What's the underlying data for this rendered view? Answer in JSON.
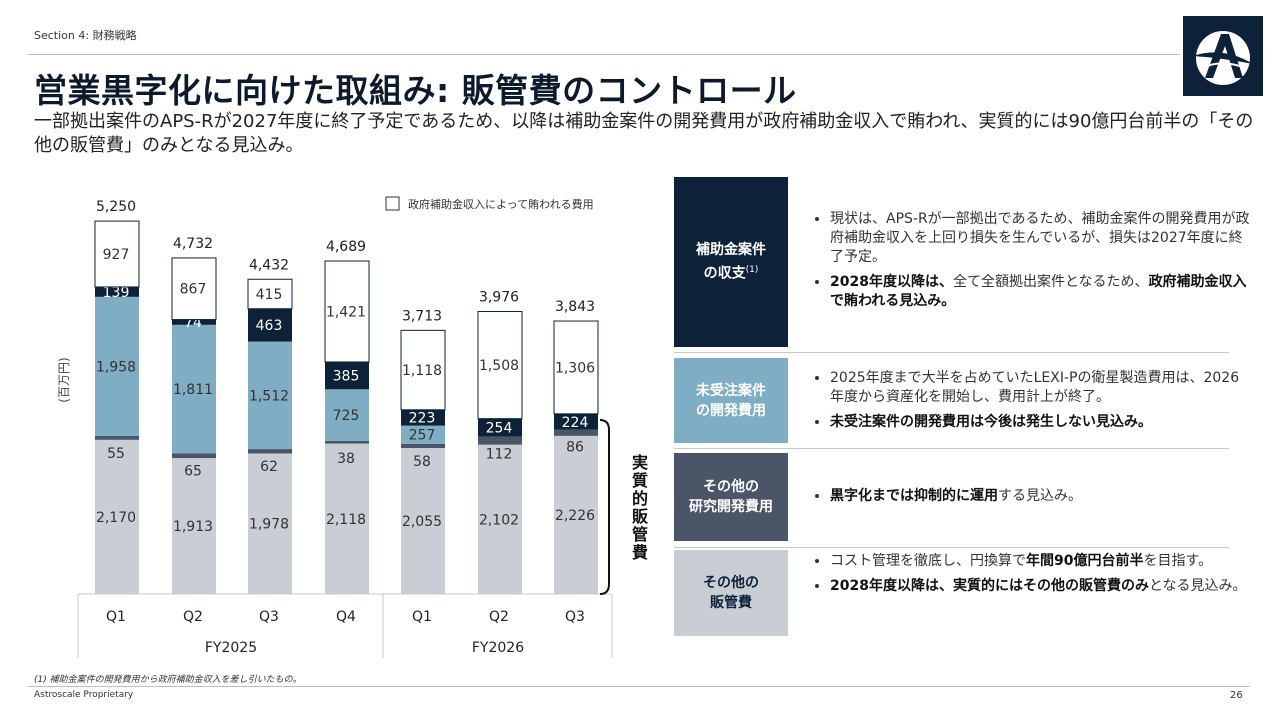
{
  "section_label": "Section 4: 財務戦略",
  "title": "営業黒字化に向けた取組み: 販管費のコントロール",
  "subtitle": "一部拠出案件のAPS-Rが2027年度に終了予定であるため、以降は補助金案件の開発費用が政府補助金収入で賄われ、実質的には90億円台前半の「その他の販管費」のみとなる見込み。",
  "colors": {
    "navy": "#0d2238",
    "steel_blue": "#7fadc4",
    "slate": "#4a5568",
    "light_gray": "#c9ced4",
    "white": "#ffffff"
  },
  "chart_data": {
    "type": "stacked-bar",
    "unit_label": "(百万円)",
    "legend": "政府補助金収入によって賄われる費用",
    "bracket_label": "実質的販管費",
    "groups": [
      {
        "label": "FY2025",
        "categories": [
          "Q1",
          "Q2",
          "Q3",
          "Q4"
        ]
      },
      {
        "label": "FY2026",
        "categories": [
          "Q1",
          "Q2",
          "Q3"
        ]
      }
    ],
    "categories": [
      "Q1",
      "Q2",
      "Q3",
      "Q4",
      "Q1",
      "Q2",
      "Q3"
    ],
    "totals": [
      5250,
      4732,
      4432,
      4689,
      3713,
      3976,
      3843
    ],
    "total_labels": [
      "5,250",
      "4,732",
      "4,432",
      "4,689",
      "3,713",
      "3,976",
      "3,843"
    ],
    "series": [
      {
        "name": "その他の販管費",
        "color": "light_gray",
        "values": [
          2170,
          1913,
          1978,
          2118,
          2055,
          2102,
          2226
        ],
        "labels": [
          "2,170",
          "1,913",
          "1,978",
          "2,118",
          "2,055",
          "2,102",
          "2,226"
        ]
      },
      {
        "name": "その他の研究開発費用",
        "color": "slate",
        "values": [
          55,
          65,
          62,
          38,
          58,
          112,
          86
        ],
        "labels": [
          "55",
          "65",
          "62",
          "38",
          "58",
          "112",
          "86"
        ]
      },
      {
        "name": "未受注案件の開発費用",
        "color": "steel_blue",
        "values": [
          1958,
          1811,
          1512,
          725,
          257,
          0,
          0
        ],
        "labels": [
          "1,958",
          "1,811",
          "1,512",
          "725",
          "257",
          "",
          ""
        ]
      },
      {
        "name": "補助金案件の収支",
        "color": "navy",
        "values": [
          139,
          74,
          463,
          385,
          223,
          254,
          224
        ],
        "labels": [
          "139",
          "74",
          "463",
          "385",
          "223",
          "254",
          "224"
        ]
      },
      {
        "name": "政府補助金収入によって賄われる費用",
        "color": "white",
        "values": [
          927,
          867,
          415,
          1421,
          1118,
          1508,
          1306
        ],
        "labels": [
          "927",
          "867",
          "415",
          "1,421",
          "1,118",
          "1,508",
          "1,306"
        ]
      }
    ],
    "ylim": [
      0,
      5250
    ]
  },
  "categories_panel": [
    {
      "label_line1": "補助金案件",
      "label_line2": "の収支",
      "footnote_mark": "(1)",
      "color": "navy",
      "bullets": [
        {
          "parts": [
            {
              "text": "現状は、APS-Rが一部拠出であるため、補助金案件の開発費用が政府補助金収入を上回り損失を生んでいるが、損失は2027年度に終了予定。",
              "bold": false
            }
          ]
        },
        {
          "parts": [
            {
              "text": "2028年度以降は、",
              "bold": true
            },
            {
              "text": "全て全額拠出案件となるため、",
              "bold": false
            },
            {
              "text": "政府補助金収入で賄われる見込み。",
              "bold": true
            }
          ]
        }
      ]
    },
    {
      "label_line1": "未受注案件",
      "label_line2": "の開発費用",
      "footnote_mark": "",
      "color": "steel_blue",
      "bullets": [
        {
          "parts": [
            {
              "text": "2025年度まで大半を占めていたLEXI-Pの衛星製造費用は、2026年度から資産化を開始し、費用計上が終了。",
              "bold": false
            }
          ]
        },
        {
          "parts": [
            {
              "text": "未受注案件の開発費用は今後は発生しない見込み。",
              "bold": true
            }
          ]
        }
      ]
    },
    {
      "label_line1": "その他の",
      "label_line2": "研究開発費用",
      "footnote_mark": "",
      "color": "slate",
      "bullets": [
        {
          "parts": [
            {
              "text": "黒字化までは抑制的に運用",
              "bold": true
            },
            {
              "text": "する見込み。",
              "bold": false
            }
          ]
        }
      ]
    },
    {
      "label_line1": "その他の",
      "label_line2": "販管費",
      "footnote_mark": "",
      "color": "light_gray",
      "bullets": [
        {
          "parts": [
            {
              "text": "コスト管理を徹底し、円換算で",
              "bold": false
            },
            {
              "text": "年間90億円台前半",
              "bold": true
            },
            {
              "text": "を目指す。",
              "bold": false
            }
          ]
        },
        {
          "parts": [
            {
              "text": "2028年度以降は、実質的にはその他の販管費のみ",
              "bold": true
            },
            {
              "text": "となる見込み。",
              "bold": false
            }
          ]
        }
      ]
    }
  ],
  "footnote": "(1) 補助金案件の開発費用から政府補助金収入を差し引いたもの。",
  "footer": {
    "company": "Astroscale Proprietary",
    "page": "26"
  },
  "logo_icon": "astroscale-logo-icon"
}
